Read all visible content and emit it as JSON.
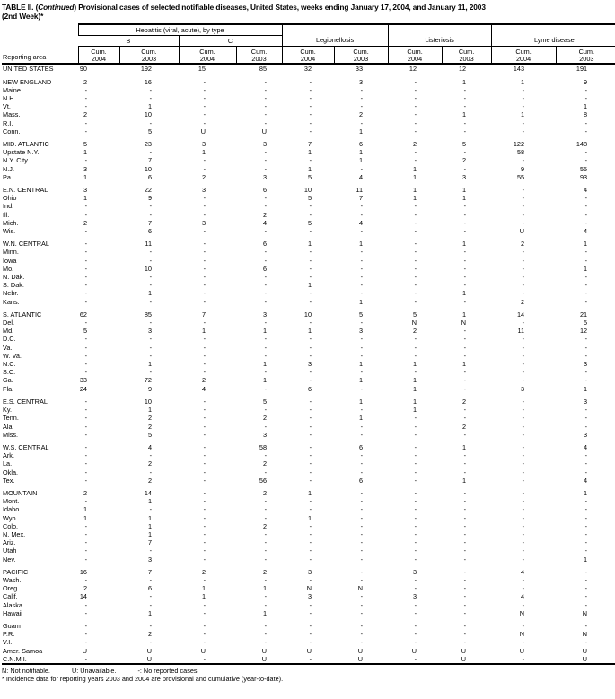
{
  "title": {
    "prefix": "TABLE II. (",
    "continued": "Continued",
    "suffix": ") Provisional cases of selected notifiable diseases, United States, weeks ending January 17, 2004, and January 11, 2003",
    "line2": "(2nd Week)*"
  },
  "header": {
    "reporting_area": "Reporting area",
    "groups": {
      "hepatitis": "Hepatitis (viral, acute), by type",
      "hep_b": "B",
      "hep_c": "C",
      "legionellosis": "Legionellosis",
      "listeriosis": "Listeriosis",
      "lyme": "Lyme disease"
    },
    "col_label_top": "Cum.",
    "col_years": [
      "2004",
      "2003",
      "2004",
      "2003",
      "2004",
      "2003",
      "2004",
      "2003",
      "2004",
      "2003"
    ]
  },
  "sections": [
    {
      "rows": [
        {
          "area": "UNITED STATES",
          "values": [
            "90",
            "192",
            "15",
            "85",
            "32",
            "33",
            "12",
            "12",
            "143",
            "191"
          ]
        }
      ]
    },
    {
      "rows": [
        {
          "area": "NEW ENGLAND",
          "values": [
            "2",
            "16",
            "-",
            "-",
            "-",
            "3",
            "-",
            "1",
            "1",
            "9"
          ]
        },
        {
          "area": "Maine",
          "values": [
            "-",
            "-",
            "-",
            "-",
            "-",
            "-",
            "-",
            "-",
            "-",
            "-"
          ]
        },
        {
          "area": "N.H.",
          "values": [
            "-",
            "-",
            "-",
            "-",
            "-",
            "-",
            "-",
            "-",
            "-",
            "-"
          ]
        },
        {
          "area": "Vt.",
          "values": [
            "-",
            "1",
            "-",
            "-",
            "-",
            "-",
            "-",
            "-",
            "-",
            "1"
          ]
        },
        {
          "area": "Mass.",
          "values": [
            "2",
            "10",
            "-",
            "-",
            "-",
            "2",
            "-",
            "1",
            "1",
            "8"
          ]
        },
        {
          "area": "R.I.",
          "values": [
            "-",
            "-",
            "-",
            "-",
            "-",
            "-",
            "-",
            "-",
            "-",
            "-"
          ]
        },
        {
          "area": "Conn.",
          "values": [
            "-",
            "5",
            "U",
            "U",
            "-",
            "1",
            "-",
            "-",
            "-",
            "-"
          ]
        }
      ]
    },
    {
      "rows": [
        {
          "area": "MID. ATLANTIC",
          "values": [
            "5",
            "23",
            "3",
            "3",
            "7",
            "6",
            "2",
            "5",
            "122",
            "148"
          ]
        },
        {
          "area": "Upstate N.Y.",
          "values": [
            "1",
            "-",
            "1",
            "-",
            "1",
            "1",
            "-",
            "-",
            "58",
            "-"
          ]
        },
        {
          "area": "N.Y. City",
          "values": [
            "-",
            "7",
            "-",
            "-",
            "-",
            "1",
            "-",
            "2",
            "-",
            "-"
          ]
        },
        {
          "area": "N.J.",
          "values": [
            "3",
            "10",
            "-",
            "-",
            "1",
            "-",
            "1",
            "-",
            "9",
            "55"
          ]
        },
        {
          "area": "Pa.",
          "values": [
            "1",
            "6",
            "2",
            "3",
            "5",
            "4",
            "1",
            "3",
            "55",
            "93"
          ]
        }
      ]
    },
    {
      "rows": [
        {
          "area": "E.N. CENTRAL",
          "values": [
            "3",
            "22",
            "3",
            "6",
            "10",
            "11",
            "1",
            "1",
            "-",
            "4"
          ]
        },
        {
          "area": "Ohio",
          "values": [
            "1",
            "9",
            "-",
            "-",
            "5",
            "7",
            "1",
            "1",
            "-",
            "-"
          ]
        },
        {
          "area": "Ind.",
          "values": [
            "-",
            "-",
            "-",
            "-",
            "-",
            "-",
            "-",
            "-",
            "-",
            "-"
          ]
        },
        {
          "area": "Ill.",
          "values": [
            "-",
            "-",
            "-",
            "2",
            "-",
            "-",
            "-",
            "-",
            "-",
            "-"
          ]
        },
        {
          "area": "Mich.",
          "values": [
            "2",
            "7",
            "3",
            "4",
            "5",
            "4",
            "-",
            "-",
            "-",
            "-"
          ]
        },
        {
          "area": "Wis.",
          "values": [
            "-",
            "6",
            "-",
            "-",
            "-",
            "-",
            "-",
            "-",
            "U",
            "4"
          ]
        }
      ]
    },
    {
      "rows": [
        {
          "area": "W.N. CENTRAL",
          "values": [
            "-",
            "11",
            "-",
            "6",
            "1",
            "1",
            "-",
            "1",
            "2",
            "1"
          ]
        },
        {
          "area": "Minn.",
          "values": [
            "-",
            "-",
            "-",
            "-",
            "-",
            "-",
            "-",
            "-",
            "-",
            "-"
          ]
        },
        {
          "area": "Iowa",
          "values": [
            "-",
            "-",
            "-",
            "-",
            "-",
            "-",
            "-",
            "-",
            "-",
            "-"
          ]
        },
        {
          "area": "Mo.",
          "values": [
            "-",
            "10",
            "-",
            "6",
            "-",
            "-",
            "-",
            "-",
            "-",
            "1"
          ]
        },
        {
          "area": "N. Dak.",
          "values": [
            "-",
            "-",
            "-",
            "-",
            "-",
            "-",
            "-",
            "-",
            "-",
            "-"
          ]
        },
        {
          "area": "S. Dak.",
          "values": [
            "-",
            "-",
            "-",
            "-",
            "1",
            "-",
            "-",
            "-",
            "-",
            "-"
          ]
        },
        {
          "area": "Nebr.",
          "values": [
            "-",
            "1",
            "-",
            "-",
            "-",
            "-",
            "-",
            "1",
            "-",
            "-"
          ]
        },
        {
          "area": "Kans.",
          "values": [
            "-",
            "-",
            "-",
            "-",
            "-",
            "1",
            "-",
            "-",
            "2",
            "-"
          ]
        }
      ]
    },
    {
      "rows": [
        {
          "area": "S. ATLANTIC",
          "values": [
            "62",
            "85",
            "7",
            "3",
            "10",
            "5",
            "5",
            "1",
            "14",
            "21"
          ]
        },
        {
          "area": "Del.",
          "values": [
            "-",
            "-",
            "-",
            "-",
            "-",
            "-",
            "N",
            "N",
            "-",
            "5"
          ]
        },
        {
          "area": "Md.",
          "values": [
            "5",
            "3",
            "1",
            "1",
            "1",
            "3",
            "2",
            "-",
            "11",
            "12"
          ]
        },
        {
          "area": "D.C.",
          "values": [
            "-",
            "-",
            "-",
            "-",
            "-",
            "-",
            "-",
            "-",
            "-",
            "-"
          ]
        },
        {
          "area": "Va.",
          "values": [
            "-",
            "-",
            "-",
            "-",
            "-",
            "-",
            "-",
            "-",
            "-",
            "-"
          ]
        },
        {
          "area": "W. Va.",
          "values": [
            "-",
            "-",
            "-",
            "-",
            "-",
            "-",
            "-",
            "-",
            "-",
            "-"
          ]
        },
        {
          "area": "N.C.",
          "values": [
            "-",
            "1",
            "-",
            "1",
            "3",
            "1",
            "1",
            "1",
            "-",
            "3"
          ]
        },
        {
          "area": "S.C.",
          "values": [
            "-",
            "-",
            "-",
            "-",
            "-",
            "-",
            "-",
            "-",
            "-",
            "-"
          ]
        },
        {
          "area": "Ga.",
          "values": [
            "33",
            "72",
            "2",
            "1",
            "-",
            "1",
            "1",
            "-",
            "-",
            "-"
          ]
        },
        {
          "area": "Fla.",
          "values": [
            "24",
            "9",
            "4",
            "-",
            "6",
            "-",
            "1",
            "-",
            "3",
            "1"
          ]
        }
      ]
    },
    {
      "rows": [
        {
          "area": "E.S. CENTRAL",
          "values": [
            "-",
            "10",
            "-",
            "5",
            "-",
            "1",
            "1",
            "2",
            "-",
            "3"
          ]
        },
        {
          "area": "Ky.",
          "values": [
            "-",
            "1",
            "-",
            "-",
            "-",
            "-",
            "1",
            "-",
            "-",
            "-"
          ]
        },
        {
          "area": "Tenn.",
          "values": [
            "-",
            "2",
            "-",
            "2",
            "-",
            "1",
            "-",
            "-",
            "-",
            "-"
          ]
        },
        {
          "area": "Ala.",
          "values": [
            "-",
            "2",
            "-",
            "-",
            "-",
            "-",
            "-",
            "2",
            "-",
            "-"
          ]
        },
        {
          "area": "Miss.",
          "values": [
            "-",
            "5",
            "-",
            "3",
            "-",
            "-",
            "-",
            "-",
            "-",
            "3"
          ]
        }
      ]
    },
    {
      "rows": [
        {
          "area": "W.S. CENTRAL",
          "values": [
            "-",
            "4",
            "-",
            "58",
            "-",
            "6",
            "-",
            "1",
            "-",
            "4"
          ]
        },
        {
          "area": "Ark.",
          "values": [
            "-",
            "-",
            "-",
            "-",
            "-",
            "-",
            "-",
            "-",
            "-",
            "-"
          ]
        },
        {
          "area": "La.",
          "values": [
            "-",
            "2",
            "-",
            "2",
            "-",
            "-",
            "-",
            "-",
            "-",
            "-"
          ]
        },
        {
          "area": "Okla.",
          "values": [
            "-",
            "-",
            "-",
            "-",
            "-",
            "-",
            "-",
            "-",
            "-",
            "-"
          ]
        },
        {
          "area": "Tex.",
          "values": [
            "-",
            "2",
            "-",
            "56",
            "-",
            "6",
            "-",
            "1",
            "-",
            "4"
          ]
        }
      ]
    },
    {
      "rows": [
        {
          "area": "MOUNTAIN",
          "values": [
            "2",
            "14",
            "-",
            "2",
            "1",
            "-",
            "-",
            "-",
            "-",
            "1"
          ]
        },
        {
          "area": "Mont.",
          "values": [
            "-",
            "1",
            "-",
            "-",
            "-",
            "-",
            "-",
            "-",
            "-",
            "-"
          ]
        },
        {
          "area": "Idaho",
          "values": [
            "1",
            "-",
            "-",
            "-",
            "-",
            "-",
            "-",
            "-",
            "-",
            "-"
          ]
        },
        {
          "area": "Wyo.",
          "values": [
            "1",
            "1",
            "-",
            "-",
            "1",
            "-",
            "-",
            "-",
            "-",
            "-"
          ]
        },
        {
          "area": "Colo.",
          "values": [
            "-",
            "1",
            "-",
            "2",
            "-",
            "-",
            "-",
            "-",
            "-",
            "-"
          ]
        },
        {
          "area": "N. Mex.",
          "values": [
            "-",
            "1",
            "-",
            "-",
            "-",
            "-",
            "-",
            "-",
            "-",
            "-"
          ]
        },
        {
          "area": "Ariz.",
          "values": [
            "-",
            "7",
            "-",
            "-",
            "-",
            "-",
            "-",
            "-",
            "-",
            "-"
          ]
        },
        {
          "area": "Utah",
          "values": [
            "-",
            "-",
            "-",
            "-",
            "-",
            "-",
            "-",
            "-",
            "-",
            "-"
          ]
        },
        {
          "area": "Nev.",
          "values": [
            "-",
            "3",
            "-",
            "-",
            "-",
            "-",
            "-",
            "-",
            "-",
            "1"
          ]
        }
      ]
    },
    {
      "rows": [
        {
          "area": "PACIFIC",
          "values": [
            "16",
            "7",
            "2",
            "2",
            "3",
            "-",
            "3",
            "-",
            "4",
            "-"
          ]
        },
        {
          "area": "Wash.",
          "values": [
            "-",
            "-",
            "-",
            "-",
            "-",
            "-",
            "-",
            "-",
            "-",
            "-"
          ]
        },
        {
          "area": "Oreg.",
          "values": [
            "2",
            "6",
            "1",
            "1",
            "N",
            "N",
            "-",
            "-",
            "-",
            "-"
          ]
        },
        {
          "area": "Calif.",
          "values": [
            "14",
            "-",
            "1",
            "-",
            "3",
            "-",
            "3",
            "-",
            "4",
            "-"
          ]
        },
        {
          "area": "Alaska",
          "values": [
            "-",
            "-",
            "-",
            "-",
            "-",
            "-",
            "-",
            "-",
            "-",
            "-"
          ]
        },
        {
          "area": "Hawaii",
          "values": [
            "-",
            "1",
            "-",
            "1",
            "-",
            "-",
            "-",
            "-",
            "N",
            "N"
          ]
        }
      ]
    },
    {
      "rows": [
        {
          "area": "Guam",
          "values": [
            "-",
            "-",
            "-",
            "-",
            "-",
            "-",
            "-",
            "-",
            "-",
            "-"
          ]
        },
        {
          "area": "P.R.",
          "values": [
            "-",
            "2",
            "-",
            "-",
            "-",
            "-",
            "-",
            "-",
            "N",
            "N"
          ]
        },
        {
          "area": "V.I.",
          "values": [
            "-",
            "-",
            "-",
            "-",
            "-",
            "-",
            "-",
            "-",
            "-",
            "-"
          ]
        },
        {
          "area": "Amer. Samoa",
          "values": [
            "U",
            "U",
            "U",
            "U",
            "U",
            "U",
            "U",
            "U",
            "U",
            "U"
          ]
        },
        {
          "area": "C.N.M.I.",
          "values": [
            "-",
            "U",
            "-",
            "U",
            "-",
            "U",
            "-",
            "U",
            "-",
            "U"
          ]
        }
      ]
    }
  ],
  "footnotes": {
    "n": "N: Not notifiable.",
    "u": "U: Unavailable.",
    "dash": "-: No reported cases.",
    "incidence": "* Incidence data for reporting years 2003 and 2004 are provisional and cumulative (year-to-date)."
  },
  "colors": {
    "text": "#000000",
    "background": "#ffffff",
    "rule": "#000000"
  }
}
